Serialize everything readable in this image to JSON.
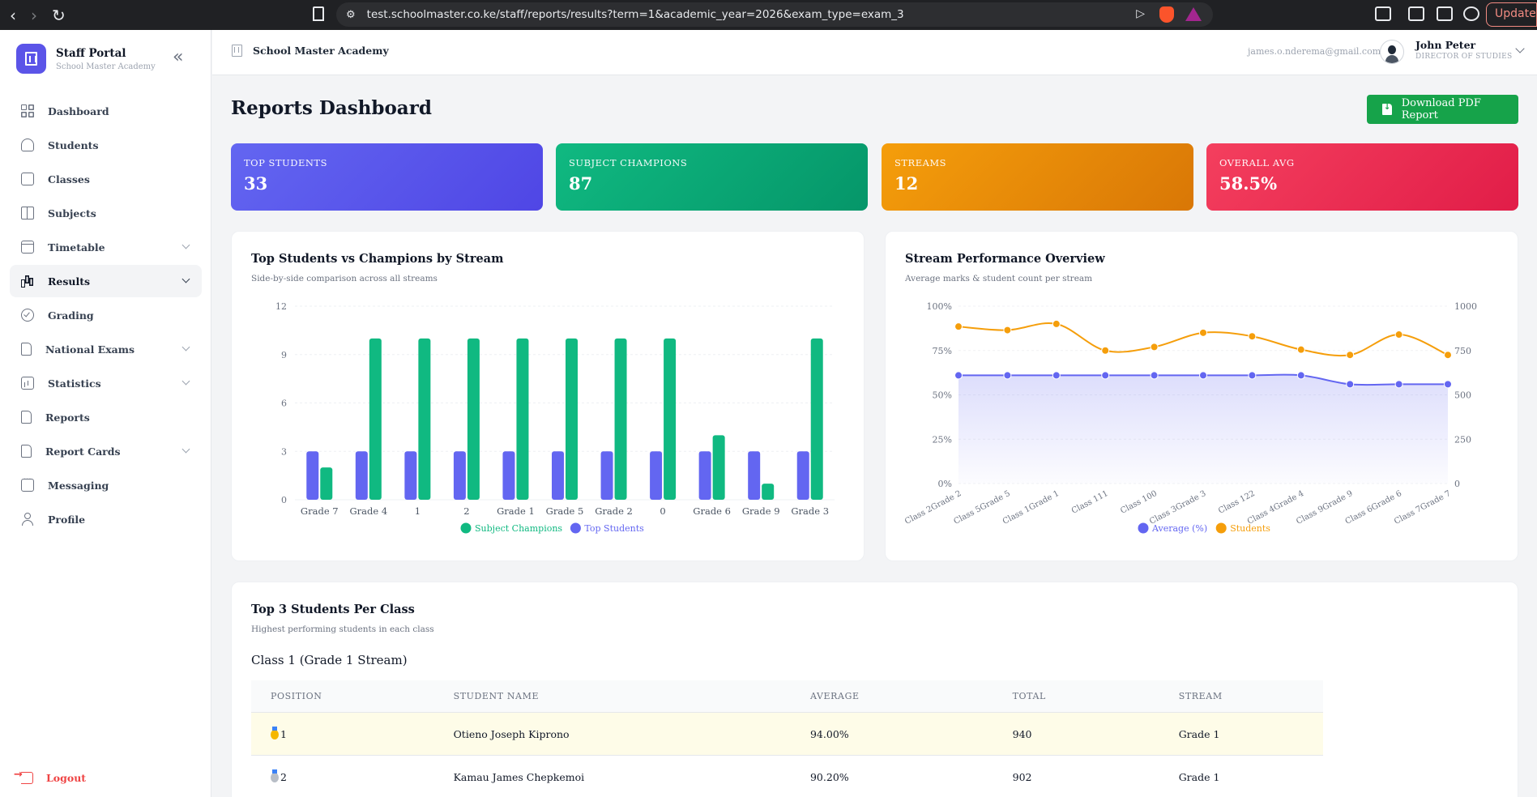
{
  "browser": {
    "url": "test.schoolmaster.co.ke/staff/reports/results?term=1&academic_year=2026&exam_type=exam_3",
    "update_label": "Update"
  },
  "sidebar": {
    "brand_title": "Staff Portal",
    "brand_subtitle": "School Master Academy",
    "items": [
      {
        "label": "Dashboard",
        "icon": "dashboard-icon",
        "has_chevron": false
      },
      {
        "label": "Students",
        "icon": "students-icon",
        "has_chevron": false
      },
      {
        "label": "Classes",
        "icon": "classes-icon",
        "has_chevron": false
      },
      {
        "label": "Subjects",
        "icon": "book-icon",
        "has_chevron": false
      },
      {
        "label": "Timetable",
        "icon": "calendar-icon",
        "has_chevron": true
      },
      {
        "label": "Results",
        "icon": "bar-chart-icon",
        "has_chevron": true,
        "active": true
      },
      {
        "label": "Grading",
        "icon": "check-circle-icon",
        "has_chevron": false
      },
      {
        "label": "National Exams",
        "icon": "file-icon",
        "has_chevron": true
      },
      {
        "label": "Statistics",
        "icon": "stats-icon",
        "has_chevron": true
      },
      {
        "label": "Reports",
        "icon": "report-icon",
        "has_chevron": false
      },
      {
        "label": "Report Cards",
        "icon": "report-card-icon",
        "has_chevron": true
      },
      {
        "label": "Messaging",
        "icon": "message-icon",
        "has_chevron": false
      },
      {
        "label": "Profile",
        "icon": "profile-icon",
        "has_chevron": false
      }
    ],
    "logout_label": "Logout"
  },
  "header": {
    "school_name": "School Master Academy",
    "email": "james.o.nderema@gmail.com",
    "user_name": "John Peter",
    "user_role": "DIRECTOR OF STUDIES"
  },
  "main": {
    "title": "Reports Dashboard",
    "download_label": "Download PDF Report",
    "stats": [
      {
        "label": "TOP STUDENTS",
        "value": "33",
        "color": "#4f46e5"
      },
      {
        "label": "SUBJECT CHAMPIONS",
        "value": "87",
        "color": "#059669"
      },
      {
        "label": "STREAMS",
        "value": "12",
        "color": "#d97706"
      },
      {
        "label": "OVERALL AVG",
        "value": "58.5%",
        "color": "#e11d48"
      }
    ],
    "bar_panel": {
      "title": "Top Students vs Champions by Stream",
      "subtitle": "Side-by-side comparison across all streams"
    },
    "line_panel": {
      "title": "Stream Performance Overview",
      "subtitle": "Average marks & student count per stream"
    },
    "top3": {
      "title": "Top 3 Students Per Class",
      "subtitle": "Highest performing students in each class",
      "class_heading": "Class 1 (Grade 1 Stream)",
      "columns": [
        "POSITION",
        "STUDENT NAME",
        "AVERAGE",
        "TOTAL",
        "STREAM"
      ],
      "rows": [
        {
          "position": "1",
          "medal": "gold-medal-icon",
          "name": "Otieno Joseph Kiprono",
          "average": "94.00%",
          "total": "940",
          "stream": "Grade 1"
        },
        {
          "position": "2",
          "medal": "silver-medal-icon",
          "name": "Kamau James Chepkemoi",
          "average": "90.20%",
          "total": "902",
          "stream": "Grade 1"
        }
      ]
    }
  },
  "chart_data": [
    {
      "type": "bar",
      "title": "Top Students vs Champions by Stream",
      "subtitle": "Side-by-side comparison across all streams",
      "categories": [
        "Grade 7",
        "Grade 4",
        "1",
        "2",
        "Grade 1",
        "Grade 5",
        "Grade 2",
        "0",
        "Grade 6",
        "Grade 9",
        "Grade 3"
      ],
      "series": [
        {
          "name": "Top Students",
          "color": "#6366f1",
          "values": [
            3,
            3,
            3,
            3,
            3,
            3,
            3,
            3,
            3,
            3,
            3
          ]
        },
        {
          "name": "Subject Champions",
          "color": "#10b981",
          "values": [
            2,
            10,
            10,
            10,
            10,
            10,
            10,
            10,
            4,
            1,
            10
          ]
        }
      ],
      "legend": [
        "Subject Champions",
        "Top Students"
      ],
      "ylim": [
        0,
        12
      ],
      "yticks": [
        "0",
        "3",
        "6",
        "9",
        "12"
      ],
      "legend_position": "bottom"
    },
    {
      "type": "line",
      "title": "Stream Performance Overview",
      "subtitle": "Average marks & student count per stream",
      "categories": [
        "Class 2Grade 2",
        "Class 5Grade 5",
        "Class 1Grade 1",
        "Class 111",
        "Class 100",
        "Class 3Grade 3",
        "Class 122",
        "Class 4Grade 4",
        "Class 9Grade 9",
        "Class 6Grade 6",
        "Class 7Grade 7"
      ],
      "series": [
        {
          "name": "Average (%)",
          "color": "#6366f1",
          "axis": "left",
          "values": [
            61,
            61,
            61,
            61,
            61,
            61,
            61,
            61,
            56,
            56,
            56
          ]
        },
        {
          "name": "Students",
          "color": "#f59e0b",
          "axis": "right",
          "values": [
            885,
            865,
            900,
            750,
            770,
            850,
            830,
            755,
            725,
            840,
            725
          ]
        }
      ],
      "y_left_ticks": [
        "0%",
        "25%",
        "50%",
        "75%",
        "100%"
      ],
      "y_right_ticks": [
        "0",
        "250",
        "500",
        "750",
        "1000"
      ],
      "ylim_left": [
        0,
        100
      ],
      "ylim_right": [
        0,
        1000
      ],
      "legend": [
        "Average (%)",
        "Students"
      ],
      "legend_position": "bottom"
    }
  ]
}
